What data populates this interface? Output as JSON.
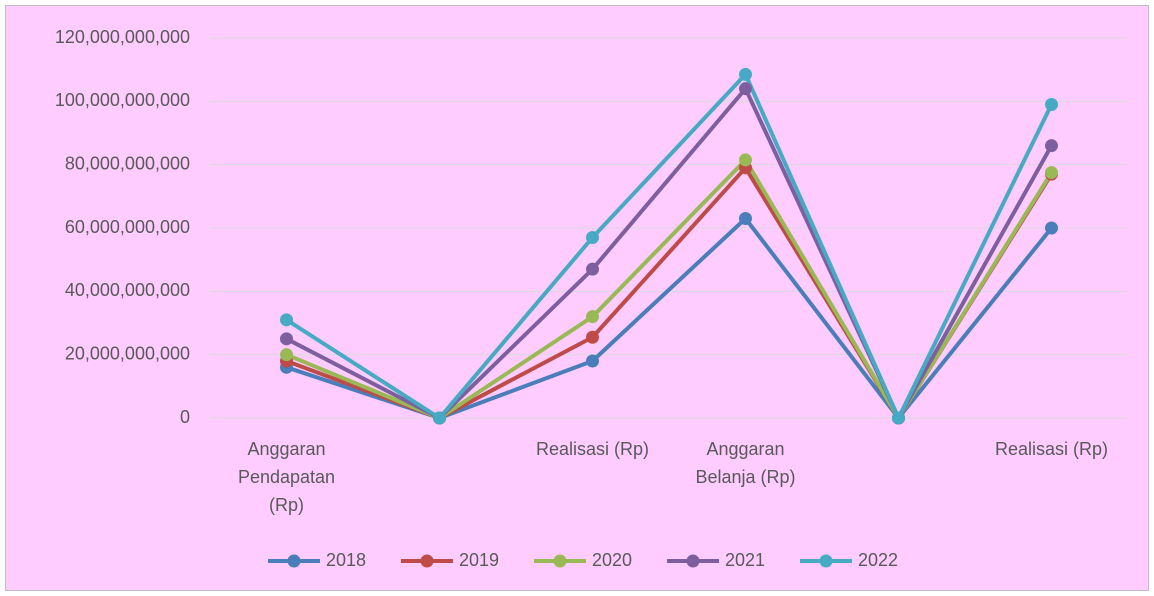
{
  "chart_data": {
    "type": "line",
    "categories": [
      "Anggaran Pendapatan (Rp)",
      null,
      "Realisasi (Rp)",
      "Anggaran Belanja (Rp)",
      null,
      "Realisasi (Rp)"
    ],
    "series": [
      {
        "name": "2018",
        "color": "#4a7ebb",
        "values": [
          16000000000,
          0,
          18000000000,
          63000000000,
          0,
          60000000000
        ]
      },
      {
        "name": "2019",
        "color": "#be4b48",
        "values": [
          18000000000,
          0,
          25500000000,
          79000000000,
          0,
          77000000000
        ]
      },
      {
        "name": "2020",
        "color": "#98b954",
        "values": [
          20000000000,
          0,
          32000000000,
          81500000000,
          0,
          77500000000
        ]
      },
      {
        "name": "2021",
        "color": "#7d5fa0",
        "values": [
          25000000000,
          0,
          47000000000,
          104000000000,
          0,
          86000000000
        ]
      },
      {
        "name": "2022",
        "color": "#46aac5",
        "values": [
          31000000000,
          0,
          57000000000,
          108500000000,
          0,
          99000000000
        ]
      }
    ],
    "ylim": [
      0,
      120000000000
    ],
    "yticks": [
      0,
      {
        "value": 20000000000,
        "label": "20,000,000,000"
      },
      {
        "value": 40000000000,
        "label": "40,000,000,000"
      },
      {
        "value": 60000000000,
        "label": "60,000,000,000"
      },
      {
        "value": 80000000000,
        "label": "80,000,000,000"
      },
      {
        "value": 100000000000,
        "label": "100,000,000,000"
      },
      {
        "value": 120000000000,
        "label": "120,000,000,000"
      }
    ],
    "grid": true,
    "legend": "bottom",
    "background": "#ffccff"
  }
}
